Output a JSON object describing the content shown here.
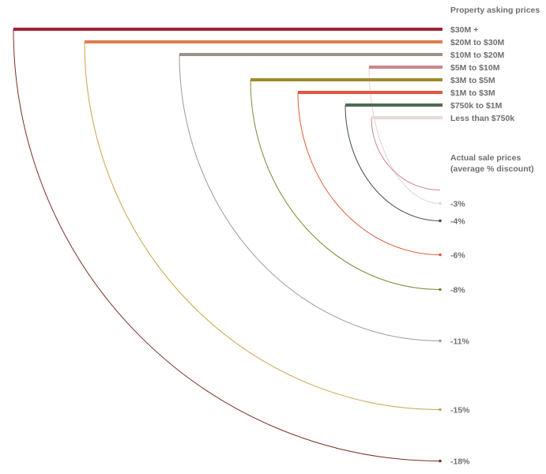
{
  "chart_data": {
    "type": "arc",
    "header_asking": "Property asking prices",
    "header_sale_line1": "Actual sale prices",
    "header_sale_line2": "(average % discount)",
    "series": [
      {
        "name": "$30M +",
        "discount": -18,
        "discount_label": "-18%",
        "color": "#9b2335",
        "arc_color": "#7a2f2a"
      },
      {
        "name": "$20M to $30M",
        "discount": -15,
        "discount_label": "-15%",
        "color": "#e07f4f",
        "arc_color": "#c9a24a"
      },
      {
        "name": "$10M to $20M",
        "discount": -11,
        "discount_label": "-11%",
        "color": "#9a928a",
        "arc_color": "#9a9a9a"
      },
      {
        "name": "$5M to $10M",
        "discount": -3,
        "discount_label": "-3%",
        "color": "#c9868e",
        "arc_color": "#e8cfd2"
      },
      {
        "name": "$3M to $5M",
        "discount": -8,
        "discount_label": "-8%",
        "color": "#9c8a2e",
        "arc_color": "#7d8a36"
      },
      {
        "name": "$1M to $3M",
        "discount": -6,
        "discount_label": "-6%",
        "color": "#e0583a",
        "arc_color": "#e0583a"
      },
      {
        "name": "$750k to $1M",
        "discount": -4,
        "discount_label": "-4%",
        "color": "#4f6a52",
        "arc_color": "#3f4f44"
      },
      {
        "name": "Less than $750k",
        "discount": null,
        "discount_label": "",
        "color": "#e3dbd6",
        "arc_color": "#c9868e"
      }
    ]
  }
}
